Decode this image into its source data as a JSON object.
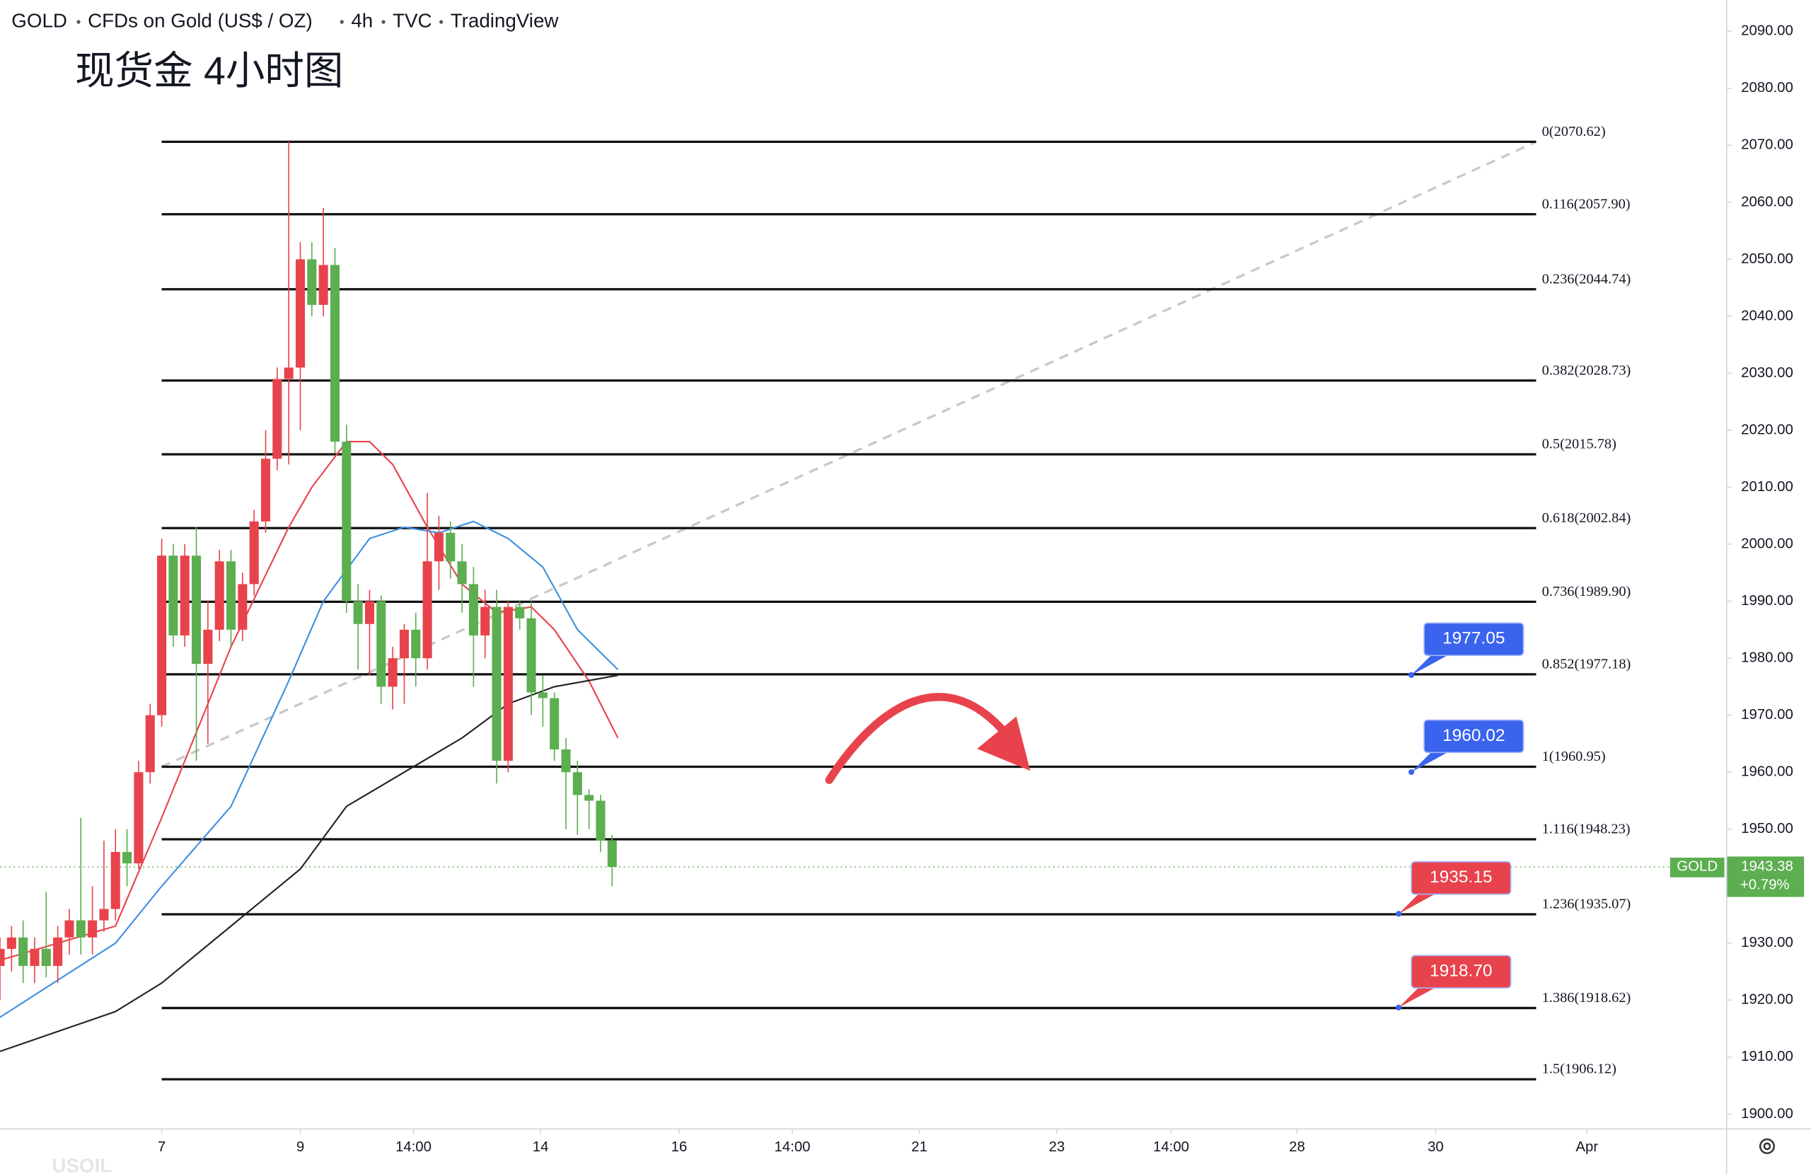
{
  "header": {
    "items": [
      "GOLD",
      "CFDs on Gold (US$ / OZ)",
      "4h",
      "TVC",
      "TradingView"
    ],
    "note": "现货金 4小时图"
  },
  "chart_data": {
    "type": "candlestick",
    "ylim": [
      1897.4,
      2095.5
    ],
    "yticks": [
      {
        "value": 1900,
        "label": "1900.00"
      },
      {
        "value": 1910,
        "label": "1910.00"
      },
      {
        "value": 1920,
        "label": "1920.00"
      },
      {
        "value": 1930,
        "label": "1930.00"
      },
      {
        "value": 1940,
        "label": "1940.00"
      },
      {
        "value": 1950,
        "label": "1950.00"
      },
      {
        "value": 1960,
        "label": "1960.00"
      },
      {
        "value": 1970,
        "label": "1970.00"
      },
      {
        "value": 1980,
        "label": "1980.00"
      },
      {
        "value": 1990,
        "label": "1990.00"
      },
      {
        "value": 2000,
        "label": "2000.00"
      },
      {
        "value": 2010,
        "label": "2010.00"
      },
      {
        "value": 2020,
        "label": "2020.00"
      },
      {
        "value": 2030,
        "label": "2030.00"
      },
      {
        "value": 2040,
        "label": "2040.00"
      },
      {
        "value": 2050,
        "label": "2050.00"
      },
      {
        "value": 2060,
        "label": "2060.00"
      },
      {
        "value": 2070,
        "label": "2070.00"
      },
      {
        "value": 2080,
        "label": "2080.00"
      },
      {
        "value": 2090,
        "label": "2090.00"
      }
    ],
    "xlim": [
      -14,
      135.5
    ],
    "xticks": [
      {
        "value": 0,
        "label": "7"
      },
      {
        "value": 12,
        "label": "9"
      },
      {
        "value": 21.8,
        "label": "14:00"
      },
      {
        "value": 32.8,
        "label": "14"
      },
      {
        "value": 44.8,
        "label": "16"
      },
      {
        "value": 54.6,
        "label": "14:00"
      },
      {
        "value": 65.6,
        "label": "21"
      },
      {
        "value": 77.5,
        "label": "23"
      },
      {
        "value": 87.4,
        "label": "14:00"
      },
      {
        "value": 98.3,
        "label": "28"
      },
      {
        "value": 110.3,
        "label": "30"
      },
      {
        "value": 123.4,
        "label": "Apr"
      }
    ],
    "up_color": "#e8434c",
    "down_color": "#5cae50",
    "candles": {
      "x": [
        -14,
        -13,
        -12,
        -11,
        -10,
        -9,
        -8,
        -7,
        -6,
        -5,
        -4,
        -3,
        -2,
        -1,
        0,
        1,
        2,
        3,
        4,
        5,
        6,
        7,
        8,
        9,
        10,
        11,
        12,
        13,
        14,
        15,
        16,
        17,
        18,
        19,
        20,
        21,
        22,
        23,
        24,
        25,
        26,
        27,
        28,
        29,
        30,
        31,
        32,
        33,
        34,
        35,
        36,
        37,
        38,
        39
      ],
      "open": [
        1926,
        1929,
        1931,
        1926,
        1929,
        1926,
        1931,
        1934,
        1931,
        1934,
        1936,
        1946,
        1944,
        1960,
        1970,
        1998,
        1984,
        1998,
        1979,
        1985,
        1997,
        1985,
        1993,
        2004,
        2015,
        2029,
        2031,
        2050,
        2042,
        2049,
        2018,
        1990,
        1986,
        1990,
        1975,
        1980,
        1985,
        1980,
        1997,
        2002,
        1997,
        1993,
        1984,
        1989,
        1962,
        1989,
        1987,
        1974,
        1973,
        1964,
        1960,
        1956,
        1955,
        1948
      ],
      "high": [
        1931,
        1933,
        1934,
        1931,
        1939,
        1933,
        1936,
        1952,
        1940,
        1948,
        1950,
        1950,
        1962,
        1972,
        2001,
        2000,
        2000,
        2003,
        1990,
        1999,
        1999,
        1995,
        2006,
        2020,
        2031,
        2070.62,
        2053,
        2053,
        2059,
        2052,
        2021,
        1993,
        1992,
        1991,
        1982,
        1986,
        1988,
        2009,
        2005,
        2004,
        2000,
        1996,
        1992,
        1992,
        1990,
        1990,
        1990,
        1977,
        1974,
        1966,
        1962,
        1957,
        1956,
        1949
      ],
      "low": [
        1920,
        1925,
        1923,
        1923,
        1924,
        1923,
        1928,
        1928,
        1928,
        1932,
        1934,
        1940,
        1943,
        1958,
        1968,
        1982,
        1982,
        1962,
        1965,
        1983,
        1982,
        1983,
        1991,
        2002,
        2013,
        2014,
        2020,
        2040,
        2040,
        2016,
        1988,
        1978,
        1977,
        1972,
        1971,
        1972,
        1975,
        1978,
        1992,
        1994,
        1988,
        1975,
        1980,
        1958,
        1960,
        1985,
        1970,
        1968,
        1962,
        1950,
        1949,
        1950,
        1946,
        1940
      ],
      "close": [
        1929,
        1931,
        1926,
        1929,
        1926,
        1931,
        1934,
        1931,
        1934,
        1936,
        1946,
        1944,
        1960,
        1970,
        1998,
        1984,
        1998,
        1979,
        1985,
        1997,
        1985,
        1993,
        2004,
        2015,
        2029,
        2031,
        2050,
        2042,
        2049,
        2018,
        1990,
        1986,
        1990,
        1975,
        1980,
        1985,
        1980,
        1997,
        2002,
        1997,
        1993,
        1984,
        1989,
        1962,
        1989,
        1987,
        1974,
        1973,
        1964,
        1960,
        1956,
        1955,
        1948,
        1943.38
      ]
    },
    "series": [
      {
        "color": "#e8434c",
        "x": [
          -14,
          -4,
          0,
          6,
          11,
          13,
          16,
          18,
          20,
          23,
          26,
          29,
          32,
          34,
          37,
          39.5
        ],
        "values": [
          1927,
          1933,
          1952,
          1982,
          2003,
          2010,
          2018,
          2018,
          2014,
          2003,
          1993,
          1988,
          1989,
          1985,
          1976,
          1966
        ]
      },
      {
        "color": "#3d8fe0",
        "x": [
          -14,
          -4,
          0,
          6,
          11,
          14,
          18,
          21,
          24,
          27,
          30,
          33,
          36,
          39.5
        ],
        "values": [
          1917,
          1930,
          1940,
          1954,
          1976,
          1990,
          2001,
          2003,
          2002,
          2004,
          2001,
          1996,
          1985,
          1978
        ]
      },
      {
        "color": "#222222",
        "x": [
          -14,
          -4,
          0,
          6,
          12,
          16,
          21,
          26,
          30,
          34,
          39.5
        ],
        "values": [
          1911,
          1918,
          1923,
          1933,
          1943,
          1954,
          1960,
          1966,
          1972,
          1975,
          1977
        ]
      }
    ],
    "fib_levels": [
      {
        "value": 2070.62,
        "label": "0(2070.62)"
      },
      {
        "value": 2057.9,
        "label": "0.116(2057.90)"
      },
      {
        "value": 2044.74,
        "label": "0.236(2044.74)"
      },
      {
        "value": 2028.73,
        "label": "0.382(2028.73)"
      },
      {
        "value": 2015.78,
        "label": "0.5(2015.78)"
      },
      {
        "value": 2002.84,
        "label": "0.618(2002.84)"
      },
      {
        "value": 1989.9,
        "label": "0.736(1989.90)"
      },
      {
        "value": 1977.18,
        "label": "0.852(1977.18)"
      },
      {
        "value": 1960.95,
        "label": "1(1960.95)"
      },
      {
        "value": 1948.23,
        "label": "1.116(1948.23)"
      },
      {
        "value": 1935.07,
        "label": "1.236(1935.07)"
      },
      {
        "value": 1918.62,
        "label": "1.386(1918.62)"
      },
      {
        "value": 1906.12,
        "label": "1.5(1906.12)"
      }
    ],
    "fib_x": [
      0,
      119
    ],
    "trend_line": {
      "x": [
        0,
        119
      ],
      "values": [
        1960.95,
        2070.62
      ]
    },
    "price_tags": [
      {
        "value": 1977.05,
        "label": "1977.05",
        "color": "#3a63ee"
      },
      {
        "value": 1960.02,
        "label": "1960.02",
        "color": "#3a63ee"
      },
      {
        "value": 1935.15,
        "label": "1935.15",
        "color": "#e8434c"
      },
      {
        "value": 1918.7,
        "label": "1918.70",
        "color": "#e8434c"
      }
    ],
    "current_price": {
      "symbol": "GOLD",
      "value": 1943.38,
      "change": {
        "value": 0.79,
        "label": "+0.79%"
      },
      "color": "#5cae50"
    },
    "watermark": "USOIL"
  }
}
